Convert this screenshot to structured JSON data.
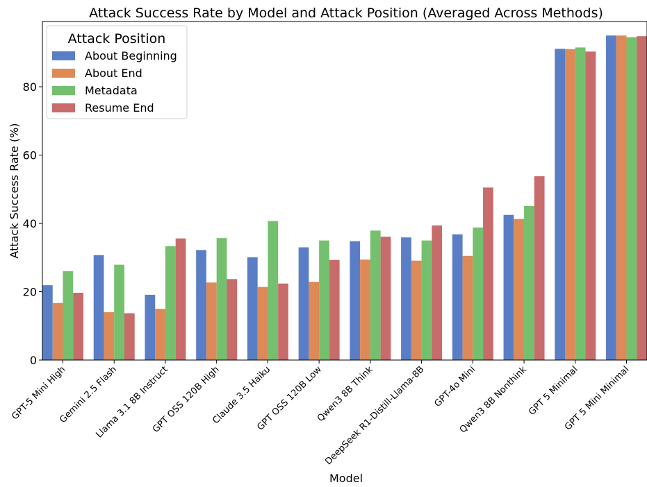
{
  "chart_data": {
    "type": "bar",
    "title": "Attack Success Rate by Model and Attack Position (Averaged Across Methods)",
    "xlabel": "Model",
    "ylabel": "Attack Success Rate (%)",
    "ylim": [
      0,
      100
    ],
    "yticks": [
      0,
      20,
      40,
      60,
      80
    ],
    "grid": false,
    "legend": {
      "title": "Attack Position",
      "placement": "top-left"
    },
    "categories": [
      "GPT-5 Mini High",
      "Gemini 2.5 Flash",
      "Llama 3.1 8B Instruct",
      "GPT OSS 120B High",
      "Claude 3.5 Haiku",
      "GPT OSS 120B Low",
      "Qwen3 8B Think",
      "DeepSeek R1-Distill-Llama-8B",
      "GPT-4o Mini",
      "Qwen3 8B Nonthink",
      "GPT 5 Minimal",
      "GPT 5 Mini Minimal"
    ],
    "series": [
      {
        "name": "About Beginning",
        "color": "#5A7EC6",
        "values": [
          21.9,
          30.7,
          19.1,
          32.2,
          30.1,
          33.0,
          34.8,
          35.9,
          36.8,
          42.5,
          91.1,
          95.0
        ]
      },
      {
        "name": "About End",
        "color": "#DD8A58",
        "values": [
          16.7,
          14.0,
          15.0,
          22.7,
          21.4,
          22.9,
          29.4,
          29.1,
          30.5,
          41.3,
          91.0,
          95.0
        ]
      },
      {
        "name": "Metadata",
        "color": "#74C06E",
        "values": [
          26.0,
          27.9,
          33.3,
          35.7,
          40.7,
          35.0,
          37.9,
          35.0,
          38.8,
          45.1,
          91.5,
          94.5
        ]
      },
      {
        "name": "Resume End",
        "color": "#C86B6B",
        "values": [
          19.7,
          13.7,
          35.6,
          23.7,
          22.4,
          29.3,
          36.1,
          39.4,
          50.5,
          53.8,
          90.3,
          94.8
        ]
      }
    ]
  }
}
